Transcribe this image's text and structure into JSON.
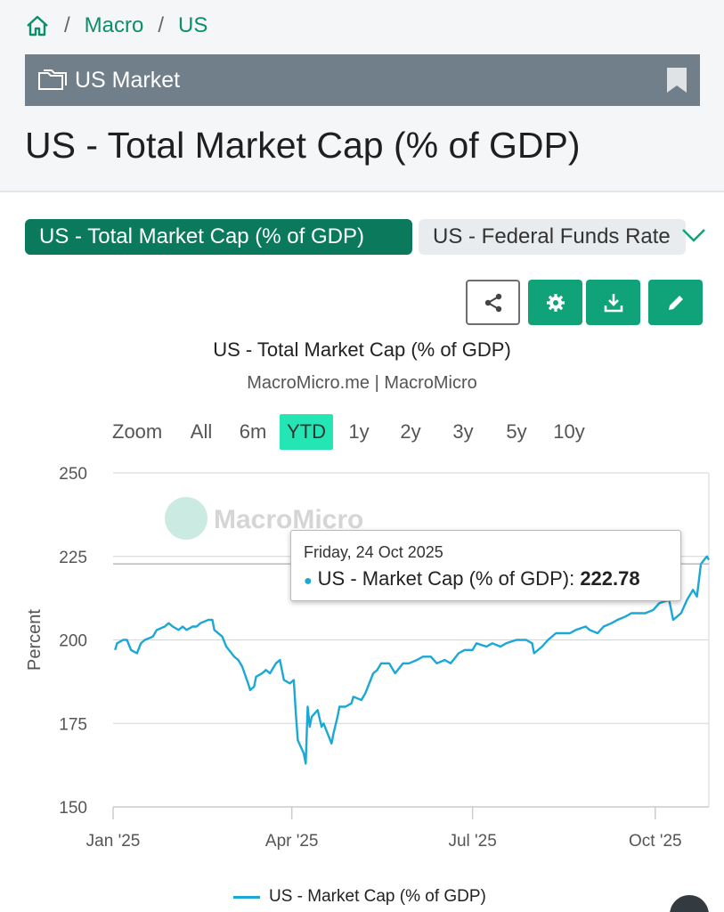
{
  "breadcrumb": {
    "home_icon": "home-icon",
    "items": [
      "Macro",
      "US"
    ],
    "separator": "/"
  },
  "category": {
    "label": "US Market",
    "icon": "folder-icon",
    "bookmark_icon": "bookmark-icon"
  },
  "page_title": "US - Total Market Cap (% of GDP)",
  "tabs": {
    "active": "US - Total Market Cap (% of GDP)",
    "inactive": "US - Federal Funds Rate",
    "chevron_icon": "chevron-down-icon"
  },
  "toolbar": {
    "share_icon": "share-icon",
    "settings_icon": "gear-icon",
    "download_icon": "download-icon",
    "edit_icon": "pencil-icon"
  },
  "zoom": {
    "label": "Zoom",
    "options": [
      "All",
      "6m",
      "YTD",
      "1y",
      "2y",
      "3y",
      "5y",
      "10y"
    ],
    "selected": "YTD"
  },
  "watermark": "MacroMicro",
  "tooltip": {
    "date": "Friday, 24 Oct 2025",
    "series": "US - Market Cap (% of GDP):",
    "value": "222.78"
  },
  "colors": {
    "series": "#1aa8d6",
    "brand": "#0b7a5c",
    "accent": "#10a37a",
    "zoom_selected": "#23e6b4"
  },
  "chart_data": {
    "type": "line",
    "title": "US - Total Market Cap (% of GDP)",
    "subtitle": "MacroMicro.me | MacroMicro",
    "ylabel": "Percent",
    "xlabel": "",
    "ylim": [
      150,
      250
    ],
    "yticks": [
      150,
      175,
      200,
      225,
      250
    ],
    "xticks": [
      "Jan '25",
      "Apr '25",
      "Jul '25",
      "Oct '25"
    ],
    "xrange": [
      "2025-01-01",
      "2025-10-28"
    ],
    "legend": "bottom-center",
    "series": [
      {
        "name": "US - Market Cap (% of GDP)",
        "points": [
          [
            "2025-01-02",
            197
          ],
          [
            "2025-01-03",
            199
          ],
          [
            "2025-01-06",
            200
          ],
          [
            "2025-01-08",
            200
          ],
          [
            "2025-01-10",
            197
          ],
          [
            "2025-01-13",
            196
          ],
          [
            "2025-01-15",
            199
          ],
          [
            "2025-01-17",
            200
          ],
          [
            "2025-01-21",
            201
          ],
          [
            "2025-01-23",
            203
          ],
          [
            "2025-01-27",
            204
          ],
          [
            "2025-01-29",
            205
          ],
          [
            "2025-01-31",
            204
          ],
          [
            "2025-02-03",
            203
          ],
          [
            "2025-02-05",
            204
          ],
          [
            "2025-02-07",
            203
          ],
          [
            "2025-02-10",
            204
          ],
          [
            "2025-02-12",
            204
          ],
          [
            "2025-02-14",
            205
          ],
          [
            "2025-02-18",
            206
          ],
          [
            "2025-02-20",
            206
          ],
          [
            "2025-02-21",
            203
          ],
          [
            "2025-02-25",
            201
          ],
          [
            "2025-02-27",
            198
          ],
          [
            "2025-03-03",
            195
          ],
          [
            "2025-03-05",
            194
          ],
          [
            "2025-03-07",
            192
          ],
          [
            "2025-03-10",
            187
          ],
          [
            "2025-03-11",
            185
          ],
          [
            "2025-03-13",
            186
          ],
          [
            "2025-03-14",
            189
          ],
          [
            "2025-03-17",
            190
          ],
          [
            "2025-03-19",
            191
          ],
          [
            "2025-03-21",
            190
          ],
          [
            "2025-03-24",
            193
          ],
          [
            "2025-03-26",
            194
          ],
          [
            "2025-03-28",
            188
          ],
          [
            "2025-03-31",
            187
          ],
          [
            "2025-04-02",
            188
          ],
          [
            "2025-04-03",
            178
          ],
          [
            "2025-04-04",
            170
          ],
          [
            "2025-04-07",
            166
          ],
          [
            "2025-04-08",
            163
          ],
          [
            "2025-04-09",
            180
          ],
          [
            "2025-04-10",
            174
          ],
          [
            "2025-04-11",
            177
          ],
          [
            "2025-04-14",
            179
          ],
          [
            "2025-04-16",
            174
          ],
          [
            "2025-04-17",
            175
          ],
          [
            "2025-04-21",
            169
          ],
          [
            "2025-04-22",
            172
          ],
          [
            "2025-04-24",
            177
          ],
          [
            "2025-04-25",
            180
          ],
          [
            "2025-04-28",
            180
          ],
          [
            "2025-05-01",
            181
          ],
          [
            "2025-05-02",
            183
          ],
          [
            "2025-05-06",
            182
          ],
          [
            "2025-05-08",
            184
          ],
          [
            "2025-05-12",
            190
          ],
          [
            "2025-05-14",
            191
          ],
          [
            "2025-05-16",
            193
          ],
          [
            "2025-05-20",
            193
          ],
          [
            "2025-05-23",
            190
          ],
          [
            "2025-05-27",
            193
          ],
          [
            "2025-05-30",
            193
          ],
          [
            "2025-06-03",
            194
          ],
          [
            "2025-06-06",
            195
          ],
          [
            "2025-06-10",
            195
          ],
          [
            "2025-06-13",
            193
          ],
          [
            "2025-06-17",
            194
          ],
          [
            "2025-06-20",
            193
          ],
          [
            "2025-06-24",
            196
          ],
          [
            "2025-06-27",
            197
          ],
          [
            "2025-07-01",
            197
          ],
          [
            "2025-07-03",
            199
          ],
          [
            "2025-07-08",
            198
          ],
          [
            "2025-07-11",
            199
          ],
          [
            "2025-07-15",
            198
          ],
          [
            "2025-07-18",
            199
          ],
          [
            "2025-07-23",
            200
          ],
          [
            "2025-07-28",
            200
          ],
          [
            "2025-07-31",
            199
          ],
          [
            "2025-08-01",
            196
          ],
          [
            "2025-08-05",
            198
          ],
          [
            "2025-08-08",
            200
          ],
          [
            "2025-08-12",
            202
          ],
          [
            "2025-08-15",
            202
          ],
          [
            "2025-08-19",
            202
          ],
          [
            "2025-08-22",
            203
          ],
          [
            "2025-08-27",
            204
          ],
          [
            "2025-08-29",
            203
          ],
          [
            "2025-09-02",
            202
          ],
          [
            "2025-09-05",
            204
          ],
          [
            "2025-09-09",
            205
          ],
          [
            "2025-09-12",
            206
          ],
          [
            "2025-09-16",
            207
          ],
          [
            "2025-09-19",
            208
          ],
          [
            "2025-09-23",
            208
          ],
          [
            "2025-09-26",
            208
          ],
          [
            "2025-09-30",
            209
          ],
          [
            "2025-10-03",
            211
          ],
          [
            "2025-10-08",
            212
          ],
          [
            "2025-10-10",
            206
          ],
          [
            "2025-10-14",
            208
          ],
          [
            "2025-10-17",
            212
          ],
          [
            "2025-10-20",
            215
          ],
          [
            "2025-10-22",
            213
          ],
          [
            "2025-10-24",
            222.78
          ],
          [
            "2025-10-27",
            225
          ],
          [
            "2025-10-28",
            224
          ]
        ]
      }
    ]
  }
}
